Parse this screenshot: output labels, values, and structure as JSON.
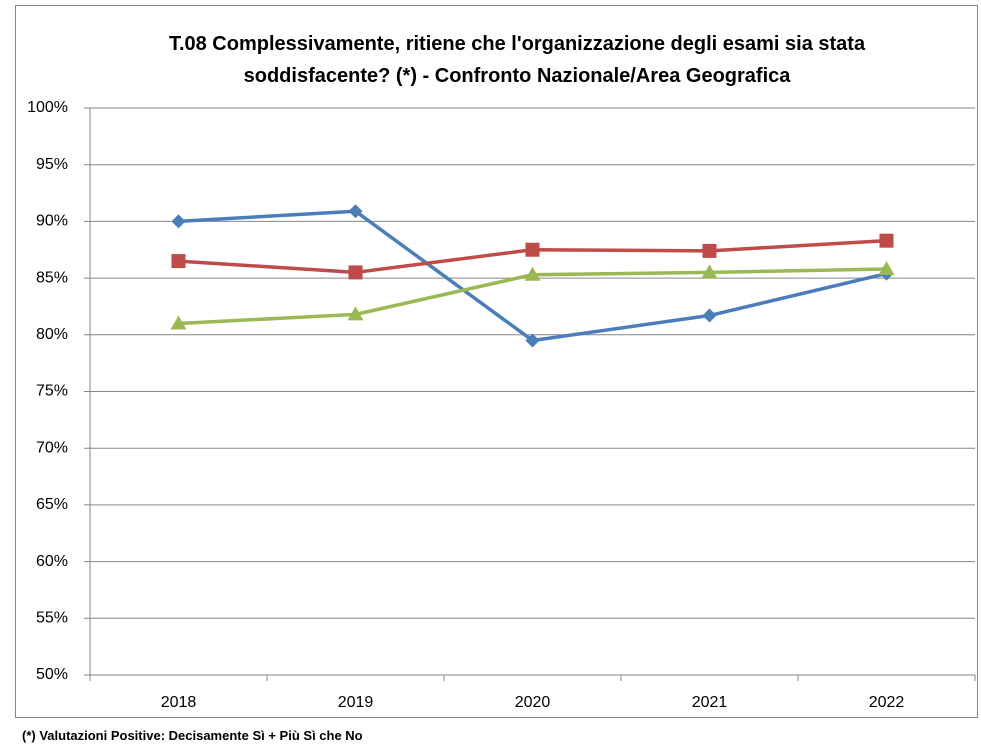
{
  "chart_data": {
    "type": "line",
    "title": "T.08 Complessivamente, ritiene che l'organizzazione degli esami sia stata soddisfacente? (*) - Confronto Nazionale/Area Geografica",
    "footnote": "(*) Valutazioni Positive: Decisamente Sì + Più Sì che No",
    "categories": [
      "2018",
      "2019",
      "2020",
      "2021",
      "2022"
    ],
    "series": [
      {
        "color": "#4a7ebb",
        "marker": "diamond",
        "values": [
          90.0,
          90.9,
          79.5,
          81.7,
          85.4
        ]
      },
      {
        "color": "#be4b48",
        "marker": "square",
        "values": [
          86.5,
          85.5,
          87.5,
          87.4,
          88.3
        ]
      },
      {
        "color": "#98b954",
        "marker": "triangle",
        "values": [
          81.0,
          81.8,
          85.3,
          85.5,
          85.8
        ]
      }
    ],
    "ylim": [
      50,
      100
    ],
    "yticks": [
      {
        "value": 50,
        "label": "50%"
      },
      {
        "value": 55,
        "label": "55%"
      },
      {
        "value": 60,
        "label": "60%"
      },
      {
        "value": 65,
        "label": "65%"
      },
      {
        "value": 70,
        "label": "70%"
      },
      {
        "value": 75,
        "label": "75%"
      },
      {
        "value": 80,
        "label": "80%"
      },
      {
        "value": 85,
        "label": "85%"
      },
      {
        "value": 90,
        "label": "90%"
      },
      {
        "value": 95,
        "label": "95%"
      },
      {
        "value": 100,
        "label": "100%"
      }
    ],
    "grid": true
  }
}
